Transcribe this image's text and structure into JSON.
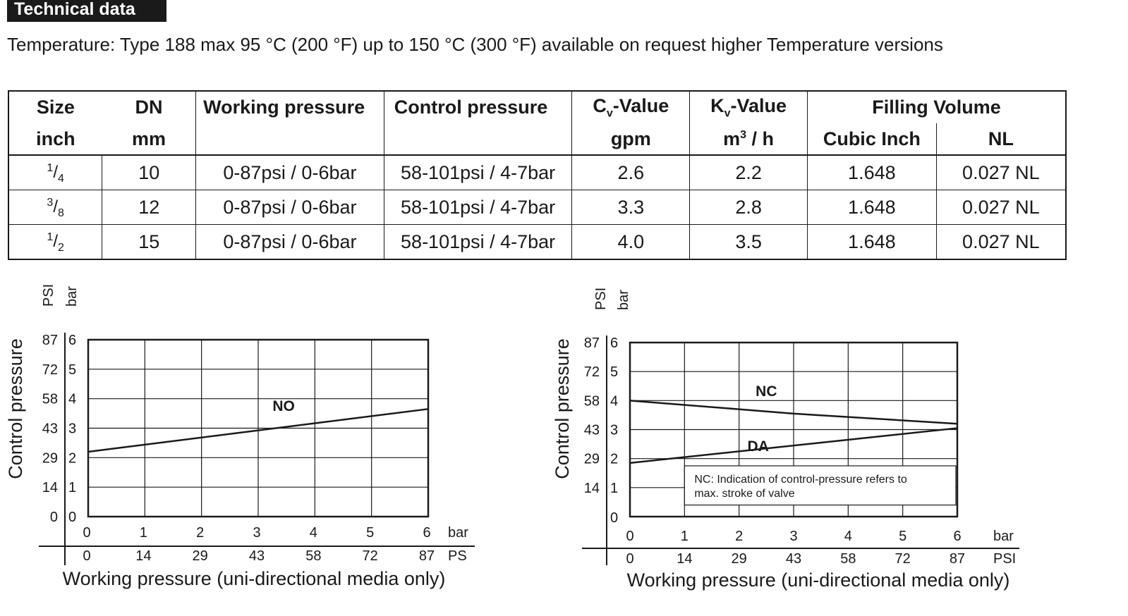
{
  "header": {
    "title": "Technical data"
  },
  "temperature_line": "Temperature: Type 188  max 95 °C (200 °F) up to 150 °C (300 °F) available on request higher Temperature versions",
  "table": {
    "headers": {
      "size": "Size",
      "size_unit": "inch",
      "dn": "DN",
      "dn_unit": "mm",
      "working_pressure": "Working pressure",
      "control_pressure": "Control pressure",
      "cv_prefix": "C",
      "cv_sub": "v",
      "cv_suffix": "-Value",
      "cv_unit": "gpm",
      "kv_prefix": "K",
      "kv_sub": "v",
      "kv_suffix": "-Value",
      "kv_unit_prefix": "m",
      "kv_unit_sup": "3",
      "kv_unit_suffix": " / h",
      "filling_volume": "Filling Volume",
      "cubic_inch": "Cubic Inch",
      "nl": "NL"
    },
    "rows": [
      {
        "size_num": "1",
        "size_den": "4",
        "dn": "10",
        "working": "0-87psi / 0-6bar",
        "control": "58-101psi / 4-7bar",
        "cv": "2.6",
        "kv": "2.2",
        "cubic_inch": "1.648",
        "nl": "0.027 NL"
      },
      {
        "size_num": "3",
        "size_den": "8",
        "dn": "12",
        "working": "0-87psi / 0-6bar",
        "control": "58-101psi / 4-7bar",
        "cv": "3.3",
        "kv": "2.8",
        "cubic_inch": "1.648",
        "nl": "0.027 NL"
      },
      {
        "size_num": "1",
        "size_den": "2",
        "dn": "15",
        "working": "0-87psi / 0-6bar",
        "control": "58-101psi / 4-7bar",
        "cv": "4.0",
        "kv": "3.5",
        "cubic_inch": "1.648",
        "nl": "0.027 NL"
      }
    ]
  },
  "chart_data": [
    {
      "type": "line",
      "title": "",
      "xlabel": "Working pressure (uni-directional media only)",
      "ylabel": "Control pressure",
      "x_unit_bar": "bar",
      "x_unit_psi": "PS",
      "y_unit_psi": "PSI",
      "y_unit_bar": "bar",
      "x_ticks_bar": [
        "0",
        "1",
        "2",
        "3",
        "4",
        "5",
        "6"
      ],
      "x_ticks_psi": [
        "0",
        "14",
        "29",
        "43",
        "58",
        "72",
        "87"
      ],
      "y_ticks_bar": [
        "0",
        "1",
        "2",
        "3",
        "4",
        "5",
        "6"
      ],
      "y_ticks_psi": [
        "0",
        "14",
        "29",
        "43",
        "58",
        "72",
        "87"
      ],
      "xlim": [
        0,
        6
      ],
      "ylim": [
        0,
        6
      ],
      "grid": true,
      "series": [
        {
          "name": "NO",
          "x": [
            0,
            6
          ],
          "y": [
            2.2,
            3.65
          ]
        }
      ]
    },
    {
      "type": "line",
      "title": "",
      "xlabel": "Working pressure (uni-directional media only)",
      "ylabel": "Control pressure",
      "x_unit_bar": "bar",
      "x_unit_psi": "PSI",
      "y_unit_psi": "PSI",
      "y_unit_bar": "bar",
      "x_ticks_bar": [
        "0",
        "1",
        "2",
        "3",
        "4",
        "5",
        "6"
      ],
      "x_ticks_psi": [
        "0",
        "14",
        "29",
        "43",
        "58",
        "72",
        "87"
      ],
      "y_ticks_bar": [
        "",
        "1",
        "2",
        "3",
        "4",
        "5",
        "6"
      ],
      "y_ticks_psi": [
        "",
        "14",
        "29",
        "43",
        "58",
        "72",
        "87"
      ],
      "y_extra_zero": "0",
      "xlim": [
        0,
        6
      ],
      "ylim": [
        0,
        6
      ],
      "grid": true,
      "series": [
        {
          "name": "NC",
          "x": [
            0,
            3,
            6
          ],
          "y": [
            4.0,
            3.55,
            3.2
          ]
        },
        {
          "name": "DA",
          "x": [
            0,
            6
          ],
          "y": [
            1.85,
            3.05
          ]
        }
      ],
      "annotation": "NC: Indication of control-pressure refers to max. stroke of valve",
      "annotation_line1": "NC: Indication of control-pressure refers to",
      "annotation_line2": "max. stroke of valve"
    }
  ]
}
